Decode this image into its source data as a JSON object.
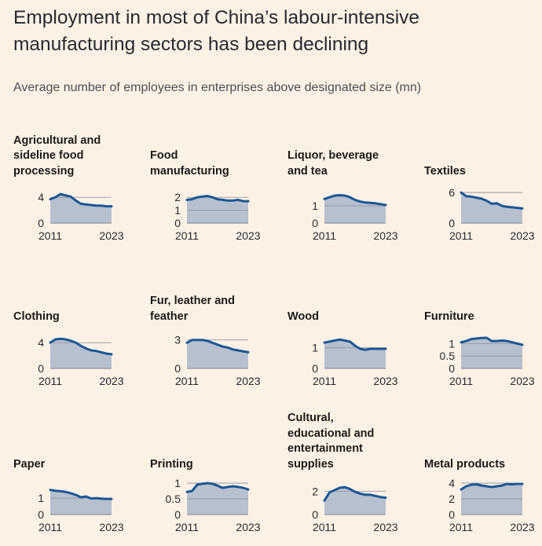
{
  "title": "Employment in most of China’s labour-intensive manufacturing sectors has been declining",
  "subtitle": "Average number of employees in enterprises above designated size (mn)",
  "colors": {
    "background": "#fdf1e5",
    "line": "#1b5796",
    "area": "#b7c0cf",
    "gridline": "#8f96a3"
  },
  "chart_data": [
    {
      "type": "area",
      "title": "Agricultural and sideline food processing",
      "x": [
        2011,
        2012,
        2013,
        2014,
        2015,
        2016,
        2017,
        2018,
        2019,
        2020,
        2021,
        2022,
        2023
      ],
      "values": [
        3.7,
        4.0,
        4.5,
        4.3,
        4.1,
        3.5,
        3.0,
        2.9,
        2.8,
        2.7,
        2.7,
        2.6,
        2.6
      ],
      "ylim": [
        0,
        5.6
      ],
      "yticks": [
        0,
        4
      ],
      "xtick_labels": [
        "2011",
        "2023"
      ]
    },
    {
      "type": "area",
      "title": "Food manufacturing",
      "x": [
        2011,
        2012,
        2013,
        2014,
        2015,
        2016,
        2017,
        2018,
        2019,
        2020,
        2021,
        2022,
        2023
      ],
      "values": [
        1.8,
        1.85,
        2.0,
        2.05,
        2.1,
        2.0,
        1.85,
        1.8,
        1.75,
        1.75,
        1.8,
        1.7,
        1.7
      ],
      "ylim": [
        0,
        2.8
      ],
      "yticks": [
        0,
        1,
        2
      ],
      "xtick_labels": [
        "2011",
        "2023"
      ]
    },
    {
      "type": "area",
      "title": "Liquor, beverage and tea",
      "x": [
        2011,
        2012,
        2013,
        2014,
        2015,
        2016,
        2017,
        2018,
        2019,
        2020,
        2021,
        2022,
        2023
      ],
      "values": [
        1.4,
        1.5,
        1.6,
        1.62,
        1.6,
        1.5,
        1.35,
        1.25,
        1.2,
        1.18,
        1.15,
        1.1,
        1.05
      ],
      "ylim": [
        0,
        2.1
      ],
      "yticks": [
        0,
        1
      ],
      "xtick_labels": [
        "2011",
        "2023"
      ]
    },
    {
      "type": "area",
      "title": "Textiles",
      "x": [
        2011,
        2012,
        2013,
        2014,
        2015,
        2016,
        2017,
        2018,
        2019,
        2020,
        2021,
        2022,
        2023
      ],
      "values": [
        6.0,
        5.3,
        5.2,
        5.0,
        4.8,
        4.4,
        3.8,
        3.9,
        3.4,
        3.2,
        3.1,
        3.0,
        2.9
      ],
      "ylim": [
        0,
        7.1
      ],
      "yticks": [
        0,
        6
      ],
      "xtick_labels": [
        "2011",
        "2023"
      ]
    },
    {
      "type": "area",
      "title": "Clothing",
      "x": [
        2011,
        2012,
        2013,
        2014,
        2015,
        2016,
        2017,
        2018,
        2019,
        2020,
        2021,
        2022,
        2023
      ],
      "values": [
        4.0,
        4.5,
        4.6,
        4.5,
        4.3,
        4.0,
        3.5,
        3.1,
        2.8,
        2.7,
        2.5,
        2.3,
        2.2
      ],
      "ylim": [
        0,
        5.6
      ],
      "yticks": [
        0,
        4
      ],
      "xtick_labels": [
        "2011",
        "2023"
      ]
    },
    {
      "type": "area",
      "title": "Fur, leather and feather",
      "x": [
        2011,
        2012,
        2013,
        2014,
        2015,
        2016,
        2017,
        2018,
        2019,
        2020,
        2021,
        2022,
        2023
      ],
      "values": [
        2.7,
        3.0,
        3.0,
        3.0,
        2.9,
        2.7,
        2.5,
        2.3,
        2.2,
        2.0,
        1.9,
        1.8,
        1.7
      ],
      "ylim": [
        0,
        3.8
      ],
      "yticks": [
        0,
        3
      ],
      "xtick_labels": [
        "2011",
        "2023"
      ]
    },
    {
      "type": "area",
      "title": "Wood",
      "x": [
        2011,
        2012,
        2013,
        2014,
        2015,
        2016,
        2017,
        2018,
        2019,
        2020,
        2021,
        2022,
        2023
      ],
      "values": [
        1.25,
        1.3,
        1.35,
        1.4,
        1.35,
        1.3,
        1.1,
        0.95,
        0.9,
        0.95,
        0.95,
        0.95,
        0.95
      ],
      "ylim": [
        0,
        1.75
      ],
      "yticks": [
        0,
        1
      ],
      "xtick_labels": [
        "2011",
        "2023"
      ]
    },
    {
      "type": "area",
      "title": "Furniture",
      "x": [
        2011,
        2012,
        2013,
        2014,
        2015,
        2016,
        2017,
        2018,
        2019,
        2020,
        2021,
        2022,
        2023
      ],
      "values": [
        1.05,
        1.1,
        1.18,
        1.2,
        1.22,
        1.23,
        1.1,
        1.1,
        1.12,
        1.1,
        1.05,
        1.0,
        0.95
      ],
      "ylim": [
        0,
        1.45
      ],
      "yticks": [
        0,
        0.5,
        1
      ],
      "xtick_labels": [
        "2011",
        "2023"
      ]
    },
    {
      "type": "area",
      "title": "Paper",
      "x": [
        2011,
        2012,
        2013,
        2014,
        2015,
        2016,
        2017,
        2018,
        2019,
        2020,
        2021,
        2022,
        2023
      ],
      "values": [
        1.5,
        1.45,
        1.42,
        1.38,
        1.3,
        1.2,
        1.05,
        1.1,
        0.98,
        1.0,
        0.97,
        0.95,
        0.95
      ],
      "ylim": [
        0,
        2.2
      ],
      "yticks": [
        0,
        1
      ],
      "xtick_labels": [
        "2011",
        "2023"
      ]
    },
    {
      "type": "area",
      "title": "Printing",
      "x": [
        2011,
        2012,
        2013,
        2014,
        2015,
        2016,
        2017,
        2018,
        2019,
        2020,
        2021,
        2022,
        2023
      ],
      "values": [
        0.72,
        0.75,
        0.95,
        0.98,
        1.0,
        0.98,
        0.92,
        0.85,
        0.88,
        0.9,
        0.88,
        0.85,
        0.8
      ],
      "ylim": [
        0,
        1.15
      ],
      "yticks": [
        0,
        0.5,
        1
      ],
      "xtick_labels": [
        "2011",
        "2023"
      ]
    },
    {
      "type": "area",
      "title": "Cultural, educational and entertainment supplies",
      "x": [
        2011,
        2012,
        2013,
        2014,
        2015,
        2016,
        2017,
        2018,
        2019,
        2020,
        2021,
        2022,
        2023
      ],
      "values": [
        1.2,
        1.9,
        2.1,
        2.3,
        2.35,
        2.2,
        1.95,
        1.8,
        1.7,
        1.7,
        1.6,
        1.5,
        1.45
      ],
      "ylim": [
        0,
        3.1
      ],
      "yticks": [
        0,
        2
      ],
      "xtick_labels": [
        "2011",
        "2023"
      ]
    },
    {
      "type": "area",
      "title": "Metal products",
      "x": [
        2011,
        2012,
        2013,
        2014,
        2015,
        2016,
        2017,
        2018,
        2019,
        2020,
        2021,
        2022,
        2023
      ],
      "values": [
        3.2,
        3.6,
        3.8,
        3.85,
        3.7,
        3.6,
        3.5,
        3.6,
        3.7,
        3.9,
        3.85,
        3.9,
        3.9
      ],
      "ylim": [
        0,
        4.6
      ],
      "yticks": [
        0,
        2,
        4
      ],
      "xtick_labels": [
        "2011",
        "2023"
      ]
    }
  ]
}
